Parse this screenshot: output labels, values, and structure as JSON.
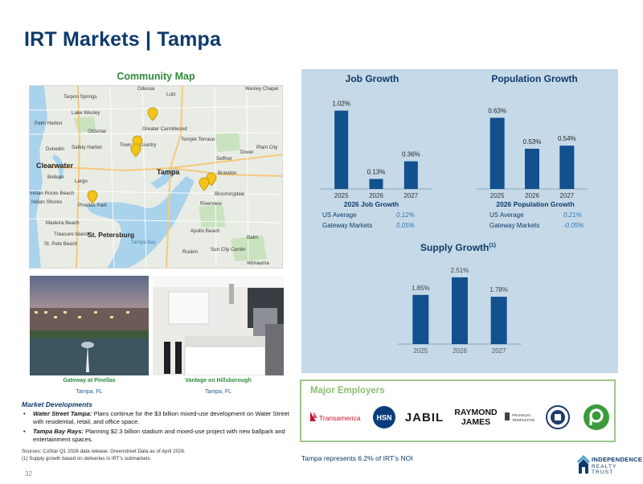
{
  "page": {
    "title": "IRT Markets | Tampa",
    "page_number": "32"
  },
  "map": {
    "title": "Community Map",
    "place_labels": [
      "Tarpon Springs",
      "Lutz",
      "Palm Harbor",
      "Lake Wesley",
      "Oldsmar",
      "Greater Carrollwood",
      "Dunedin",
      "Safety Harbor",
      "Town 'n' Country",
      "Temple Terrace",
      "Plant City",
      "Clearwater",
      "Tampa",
      "Seffner",
      "Dover",
      "Belleair",
      "Largo",
      "Brandon",
      "Indian Rocks Beach",
      "Indian Shores",
      "Pinellas Park",
      "Bloomingdale",
      "Riverview",
      "Madeira Beach",
      "Treasure Island",
      "St. Pete Beach",
      "St. Petersburg",
      "Apollo Beach",
      "Balm",
      "Ruskin",
      "Sun City Center",
      "Wimauma",
      "Tampa Bay",
      "Odessa",
      "Wesley Chapel"
    ]
  },
  "photos": [
    {
      "name": "Gateway at Pinellas",
      "location": "Tampa, FL"
    },
    {
      "name": "Vantage on Hillsborough",
      "location": "Tampa, FL"
    }
  ],
  "market_developments": {
    "heading": "Market Developments",
    "items": [
      {
        "lead": "Water Street Tampa:",
        "text": " Plans continue for the $3 billion mixed-use development on Water Street with residential, retail, and office space."
      },
      {
        "lead": "Tampa Bay Rays:",
        "text": " Planning $2.3 billion stadium and mixed-use project with new ballpark and entertainment spaces."
      }
    ]
  },
  "sources": {
    "line1": "Sources: CoStar Q1 2026 data release. Greenstreet Data as of April 2026.",
    "line2": "(1)  Supply growth based on deliveries in IRT’s submarkets."
  },
  "job_box": {
    "subtitle": "2026 Job Growth",
    "rows": [
      {
        "label": "US Average",
        "value": "0.12%"
      },
      {
        "label": "Gateway Markets",
        "value": "0.05%"
      }
    ]
  },
  "pop_box": {
    "subtitle": "2026 Population Growth",
    "rows": [
      {
        "label": "US Average",
        "value": "0.21%"
      },
      {
        "label": "Gateway Markets",
        "value": "-0.05%"
      }
    ]
  },
  "supply_footnote": "(1)",
  "chart_data": [
    {
      "type": "bar",
      "title": "Job Growth",
      "categories": [
        "2025",
        "2026",
        "2027"
      ],
      "values": [
        1.02,
        0.13,
        0.36
      ],
      "labels": [
        "1.02%",
        "0.13%",
        "0.36%"
      ],
      "color": "#12508e",
      "ylim": [
        0,
        1.1
      ]
    },
    {
      "type": "bar",
      "title": "Population Growth",
      "categories": [
        "2025",
        "2026",
        "2027"
      ],
      "values": [
        0.63,
        0.53,
        0.54
      ],
      "labels": [
        "0.63%",
        "0.53%",
        "0.54%"
      ],
      "color": "#12508e",
      "ylim": [
        0.4,
        0.66
      ]
    },
    {
      "type": "bar",
      "title": "Supply Growth",
      "categories": [
        "2025",
        "2026",
        "2027"
      ],
      "values": [
        1.85,
        2.51,
        1.78
      ],
      "labels": [
        "1.85%",
        "2.51%",
        "1.78%"
      ],
      "color": "#12508e",
      "ylim": [
        0,
        2.6
      ]
    }
  ],
  "employers": {
    "title": "Major Employers",
    "logos": [
      "Transamerica",
      "HSN",
      "JABIL",
      "RAYMOND JAMES",
      "FRANKLIN TEMPLETON",
      "Publix"
    ],
    "raymond_lines": [
      "RAYMOND",
      "JAMES"
    ],
    "franklin_lines": [
      "FRANKLIN",
      "TEMPLETON"
    ]
  },
  "footer": {
    "note": "Tampa represents 6.2% of IRT’s NOI",
    "brand_line1": "INDEPENDENCE",
    "brand_line2": "REALTY TRUST"
  },
  "colors": {
    "title": "#0d3a6b",
    "accent_green": "#2d8a3e",
    "bar": "#12508e",
    "panel_bg": "#c5d9e8",
    "employer_border": "#9ec58a",
    "pin": "#f3c41a"
  }
}
